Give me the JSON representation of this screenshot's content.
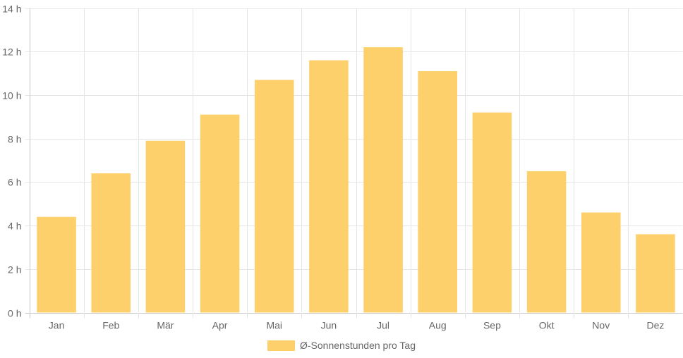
{
  "chart_data": {
    "type": "bar",
    "categories": [
      "Jan",
      "Feb",
      "Mär",
      "Apr",
      "Mai",
      "Jun",
      "Jul",
      "Aug",
      "Sep",
      "Okt",
      "Nov",
      "Dez"
    ],
    "series": [
      {
        "name": "Ø-Sonnenstunden pro Tag",
        "values": [
          4.4,
          6.4,
          7.9,
          9.1,
          10.7,
          11.6,
          12.2,
          11.1,
          9.2,
          6.5,
          4.6,
          3.6
        ]
      }
    ],
    "ylim": [
      0,
      14
    ],
    "yticks": [
      0,
      2,
      4,
      6,
      8,
      10,
      12,
      14
    ],
    "ytick_suffix": " h",
    "ytick_labels": [
      "0 h",
      "2 h",
      "4 h",
      "6 h",
      "8 h",
      "10 h",
      "12 h",
      "14 h"
    ],
    "grid": true,
    "legend": "bottom-center",
    "colors": {
      "bar": "#fdd06b",
      "grid": "#e5e5e5",
      "axis": "#c8c8c8",
      "text": "#666666"
    }
  }
}
